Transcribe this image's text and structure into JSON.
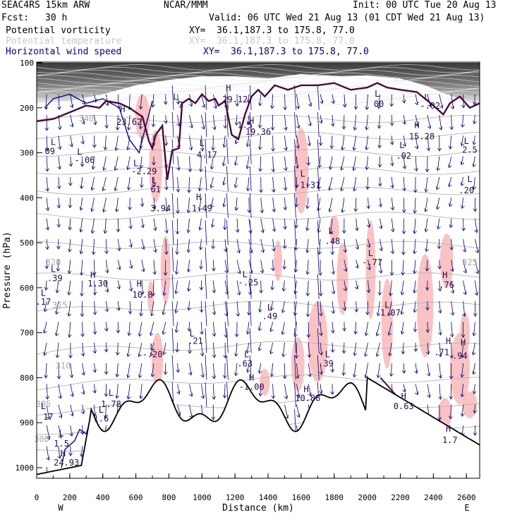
{
  "header": {
    "model": "SEAC4RS 15km ARW",
    "center": "NCAR/MMM",
    "init": "Init: 00 UTC Tue 20 Aug 13",
    "fcst_label": "Fcst:",
    "fcst_value": "30 h",
    "valid": "Valid: 06 UTC Wed 21 Aug 13 (01 CDT Wed 21 Aug 13)",
    "fields": [
      {
        "name": "Potential vorticity",
        "xy": "XY=  36.1,187.3 to 175.8, 77.0",
        "color": "#000000"
      },
      {
        "name": "Potential temperature",
        "xy": "XY=  36.1,187.3 to 175.8, 77.0",
        "color": "#c8c8c8"
      },
      {
        "name": "Horizontal wind speed",
        "xy": "XY=  36.1,187.3 to 175.8, 77.0",
        "color": "#000080"
      }
    ]
  },
  "colors": {
    "theta": "#b4b4b4",
    "wind": "#00007a",
    "pv_shade": "#f9bcbc",
    "tropopause": "#4a0a3a",
    "terrain": "#000000"
  },
  "chart_data": {
    "type": "cross-section",
    "xlabel": "Distance (km)",
    "ylabel": "Pressure (hPa)",
    "x_ticks": [
      0,
      200,
      400,
      600,
      800,
      1000,
      1200,
      1400,
      1600,
      1800,
      2000,
      2200,
      2400,
      2600
    ],
    "y_ticks": [
      100,
      200,
      300,
      400,
      500,
      600,
      700,
      800,
      900,
      1000
    ],
    "xlim": [
      0,
      2680
    ],
    "ylim": [
      1050,
      100
    ],
    "endpoints": {
      "left": "W",
      "right": "E"
    },
    "theta_labels": [
      {
        "text": "340",
        "x": 300,
        "p": 230
      },
      {
        "text": "320",
        "x": 100,
        "p": 550
      },
      {
        "text": "315",
        "x": 140,
        "p": 645
      },
      {
        "text": "310",
        "x": 160,
        "p": 780
      },
      {
        "text": "305",
        "x": 40,
        "p": 865
      },
      {
        "text": "300",
        "x": 30,
        "p": 943
      },
      {
        "text": "325",
        "x": 2620,
        "p": 550
      }
    ],
    "pv_labels": [
      {
        "text": "L",
        "x": 840,
        "p": 182
      },
      {
        "text": "7",
        "x": 870,
        "p": 200
      },
      {
        "text": "H",
        "x": 520,
        "p": 210
      },
      {
        "text": "23.62",
        "x": 560,
        "p": 238
      },
      {
        "text": "L",
        "x": 100,
        "p": 283
      },
      {
        "text": "09",
        "x": 80,
        "p": 303
      },
      {
        "text": "L",
        "x": 260,
        "p": 305
      },
      {
        "text": "-.06",
        "x": 290,
        "p": 323
      },
      {
        "text": "L",
        "x": 600,
        "p": 330
      },
      {
        "text": "-2.29",
        "x": 650,
        "p": 348
      },
      {
        "text": "L",
        "x": 1000,
        "p": 285
      },
      {
        "text": "4.17",
        "x": 1030,
        "p": 311
      },
      {
        "text": "H",
        "x": 1160,
        "p": 163
      },
      {
        "text": "29.12",
        "x": 1200,
        "p": 188
      },
      {
        "text": "1.5",
        "x": 1260,
        "p": 245
      },
      {
        "text": "H",
        "x": 1300,
        "p": 236
      },
      {
        "text": "19.36",
        "x": 1340,
        "p": 260
      },
      {
        "text": "L",
        "x": 1610,
        "p": 353
      },
      {
        "text": "-1.31",
        "x": 1640,
        "p": 378
      },
      {
        "text": "L",
        "x": 2060,
        "p": 175
      },
      {
        "text": "00",
        "x": 2070,
        "p": 198
      },
      {
        "text": "L",
        "x": 2360,
        "p": 183
      },
      {
        "text": "-.02",
        "x": 2380,
        "p": 202
      },
      {
        "text": "H",
        "x": 2300,
        "p": 245
      },
      {
        "text": "15.28",
        "x": 2330,
        "p": 270
      },
      {
        "text": "L",
        "x": 2210,
        "p": 290
      },
      {
        "text": ".02",
        "x": 2220,
        "p": 313
      },
      {
        "text": "L",
        "x": 2600,
        "p": 280
      },
      {
        "text": "2.5",
        "x": 2620,
        "p": 300
      },
      {
        "text": "L",
        "x": 2620,
        "p": 365
      },
      {
        "text": ".20",
        "x": 2600,
        "p": 390
      },
      {
        "text": "L",
        "x": 710,
        "p": 368
      },
      {
        "text": "61",
        "x": 720,
        "p": 388
      },
      {
        "text": "3.94",
        "x": 750,
        "p": 430
      },
      {
        "text": "H",
        "x": 980,
        "p": 405
      },
      {
        "text": "1.49",
        "x": 1000,
        "p": 430
      },
      {
        "text": "L",
        "x": 1780,
        "p": 480
      },
      {
        "text": ".48",
        "x": 1790,
        "p": 503
      },
      {
        "text": "L",
        "x": 2020,
        "p": 530
      },
      {
        "text": "-.77",
        "x": 2030,
        "p": 550
      },
      {
        "text": "L",
        "x": 100,
        "p": 565
      },
      {
        "text": ".39",
        "x": 110,
        "p": 585
      },
      {
        "text": "H",
        "x": 340,
        "p": 578
      },
      {
        "text": "1.30",
        "x": 370,
        "p": 597
      },
      {
        "text": "L",
        "x": 40,
        "p": 618
      },
      {
        "text": ".17",
        "x": 40,
        "p": 638
      },
      {
        "text": "H",
        "x": 620,
        "p": 598
      },
      {
        "text": "10.8",
        "x": 640,
        "p": 622
      },
      {
        "text": "L",
        "x": 1260,
        "p": 577
      },
      {
        "text": "-.25",
        "x": 1280,
        "p": 595
      },
      {
        "text": "H",
        "x": 2470,
        "p": 578
      },
      {
        "text": ".76",
        "x": 2480,
        "p": 600
      },
      {
        "text": "L",
        "x": 1410,
        "p": 650
      },
      {
        "text": ".49",
        "x": 1410,
        "p": 670
      },
      {
        "text": "L",
        "x": 2120,
        "p": 645
      },
      {
        "text": "1.07",
        "x": 2140,
        "p": 662
      },
      {
        "text": "L",
        "x": 940,
        "p": 708
      },
      {
        "text": ".21",
        "x": 960,
        "p": 725
      },
      {
        "text": "L",
        "x": 700,
        "p": 738
      },
      {
        "text": "-.20",
        "x": 700,
        "p": 755
      },
      {
        "text": "H",
        "x": 2490,
        "p": 725
      },
      {
        "text": "H",
        "x": 2580,
        "p": 728
      },
      {
        "text": ".71",
        "x": 2450,
        "p": 750
      },
      {
        "text": ".94",
        "x": 2560,
        "p": 758
      },
      {
        "text": "L",
        "x": 1760,
        "p": 755
      },
      {
        "text": ".39",
        "x": 1750,
        "p": 775
      },
      {
        "text": "L",
        "x": 1270,
        "p": 755
      },
      {
        "text": ".63",
        "x": 1260,
        "p": 775
      },
      {
        "text": "H",
        "x": 1300,
        "p": 806
      },
      {
        "text": "-1.00",
        "x": 1300,
        "p": 827
      },
      {
        "text": "H",
        "x": 1630,
        "p": 832
      },
      {
        "text": "10.88",
        "x": 1640,
        "p": 852
      },
      {
        "text": "L",
        "x": 450,
        "p": 840
      },
      {
        "text": "1.78",
        "x": 450,
        "p": 865
      },
      {
        "text": "L",
        "x": 40,
        "p": 870
      },
      {
        "text": "17",
        "x": 70,
        "p": 893
      },
      {
        "text": "L",
        "x": 390,
        "p": 878
      },
      {
        "text": "1.6",
        "x": 390,
        "p": 897
      },
      {
        "text": "H",
        "x": 2220,
        "p": 848
      },
      {
        "text": "0.63",
        "x": 2220,
        "p": 870
      },
      {
        "text": "H",
        "x": 2490,
        "p": 920
      },
      {
        "text": "1.7",
        "x": 2500,
        "p": 945
      },
      {
        "text": "L",
        "x": 150,
        "p": 930
      },
      {
        "text": "1.5",
        "x": 150,
        "p": 953
      },
      {
        "text": "H",
        "x": 160,
        "p": 975
      },
      {
        "text": "24.93",
        "x": 180,
        "p": 995
      }
    ]
  }
}
